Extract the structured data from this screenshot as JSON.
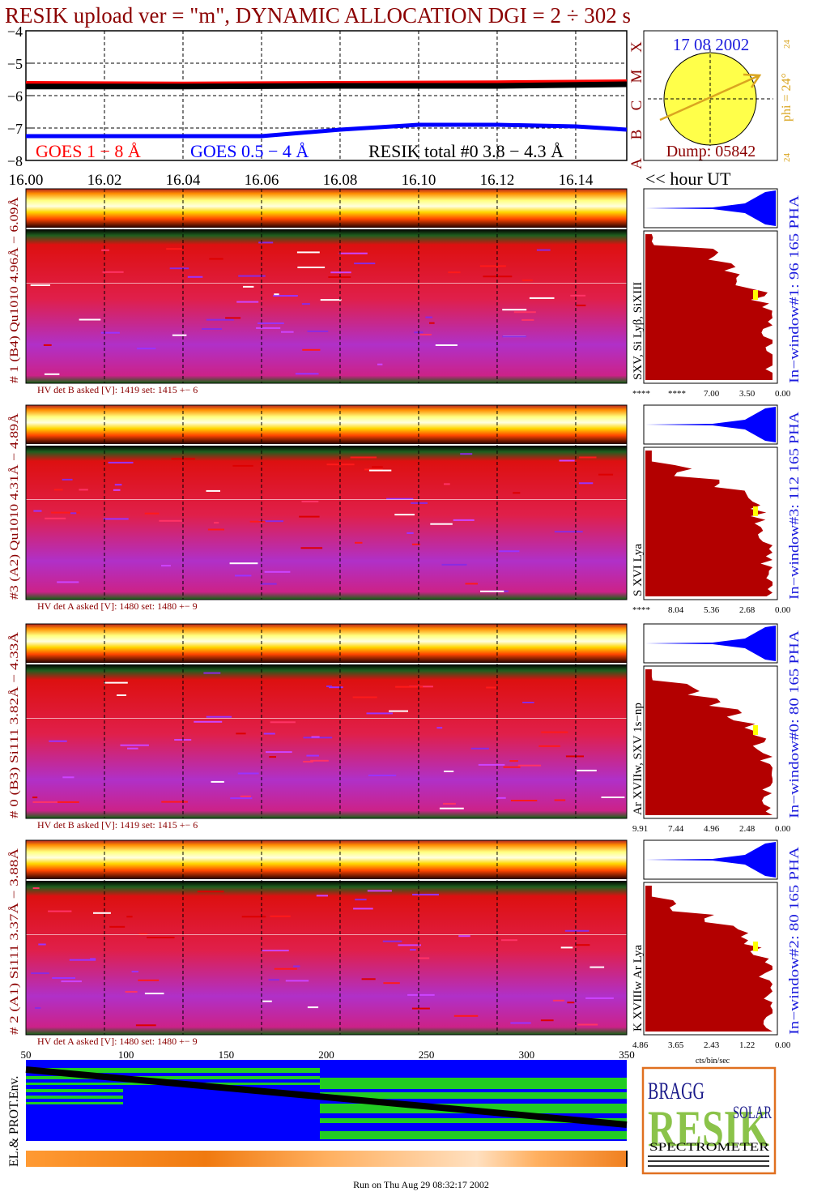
{
  "header": {
    "title": "RESIK upload ver = \"m\", DYNAMIC ALLOCATION  DGI =   2 ÷ 302 s"
  },
  "goes_panel": {
    "y_tick_labels": [
      "−4",
      "−5",
      "−6",
      "−7",
      "−8"
    ],
    "class_labels": [
      "X",
      "M",
      "C",
      "B",
      "A"
    ],
    "legend_goes_long": "GOES 1 − 8 Å",
    "legend_goes_short": "GOES 0.5 − 4 Å",
    "legend_resik_total": "RESIK total #0  3.8 − 4.3 Å",
    "colors": {
      "goes_long": "#ff0000",
      "goes_short": "#0000ff",
      "resik_total": "#000000"
    }
  },
  "sun_panel": {
    "date": "17 08 2002",
    "phi_label": "phi = 24°",
    "side_top": "24",
    "side_bottom": "24",
    "dump": "Dump: 05842"
  },
  "time_axis": {
    "ticks": [
      "16.00",
      "16.02",
      "16.04",
      "16.06",
      "16.08",
      "16.10",
      "16.12",
      "16.14"
    ],
    "unit_label": "<< hour UT"
  },
  "detectors": [
    {
      "left_label": "# 1 (B4) Qu1010 4.96Å − 6.09Å",
      "hv_text": "HV det B asked [V]:  1419 set:  1415 +−    6",
      "lines_label": "SXV, Si Lyβ, SiXIII",
      "window_label": "In−window#1:   96 165 PHA",
      "hist_ticks": [
        "****",
        "****",
        "7.00",
        "3.50",
        "0.00"
      ]
    },
    {
      "left_label": "#3 (A2) Qu1010  4.31Å − 4.89Å",
      "hv_text": "HV det A asked [V]:  1480 set:  1480 +−    9",
      "lines_label": "S XVI Lya",
      "window_label": "In−window#3:   112 165 PHA",
      "hist_ticks": [
        "****",
        "8.04",
        "5.36",
        "2.68",
        "0.00"
      ]
    },
    {
      "left_label": "# 0 (B3) Si111  3.82Å − 4.33Å",
      "hv_text": "HV det B asked [V]:  1419 set:  1415 +−    6",
      "lines_label": "Ar XVIIw,  SXV 1s−np",
      "window_label": "In−window#0:   80 165 PHA",
      "hist_ticks": [
        "9.91",
        "7.44",
        "4.96",
        "2.48",
        "0.00"
      ]
    },
    {
      "left_label": "# 2 (A1) Si111  3.37Å −  3.88Å",
      "hv_text": "HV det A asked [V]:  1480 set:  1480 +−    9",
      "lines_label": "K XVIIIw  Ar Lya",
      "window_label": "In−window#2:   80 165 PHA",
      "hist_ticks": [
        "4.86",
        "3.65",
        "2.43",
        "1.22",
        "0.00"
      ]
    }
  ],
  "hist_unit": "cts/bin/sec",
  "env_panel": {
    "label": "EL.& PROT.Env.",
    "ticks": [
      "50",
      "100",
      "150",
      "200",
      "250",
      "300",
      "350"
    ]
  },
  "logo": {
    "bragg": "BRAGG",
    "resik": "RESIK",
    "solar": "SOLAR",
    "spectrometer": "SPECTROMETER"
  },
  "footer": {
    "run_text": "Run on Thu Aug 29 08:32:17 2002"
  },
  "chart_data": {
    "type": "line",
    "x_unit": "hour UT",
    "xlim": [
      16.0,
      16.153
    ],
    "ylim": [
      -8,
      -4
    ],
    "ylabel_ticks": [
      -4,
      -5,
      -6,
      -7,
      -8
    ],
    "series": [
      {
        "name": "GOES 1 − 8 Å",
        "x": [
          16.0,
          16.04,
          16.08,
          16.12,
          16.153
        ],
        "y": [
          -5.6,
          -5.62,
          -5.6,
          -5.58,
          -5.55
        ]
      },
      {
        "name": "GOES 0.5 − 4 Å",
        "x": [
          16.0,
          16.06,
          16.08,
          16.1,
          16.12,
          16.14,
          16.153
        ],
        "y": [
          -7.25,
          -7.25,
          -7.05,
          -6.9,
          -6.9,
          -6.95,
          -7.05
        ]
      },
      {
        "name": "RESIK total #0  3.8 − 4.3 Å",
        "x": [
          16.0,
          16.04,
          16.08,
          16.12,
          16.153
        ],
        "y": [
          -5.72,
          -5.72,
          -5.7,
          -5.7,
          -5.65
        ]
      }
    ]
  }
}
